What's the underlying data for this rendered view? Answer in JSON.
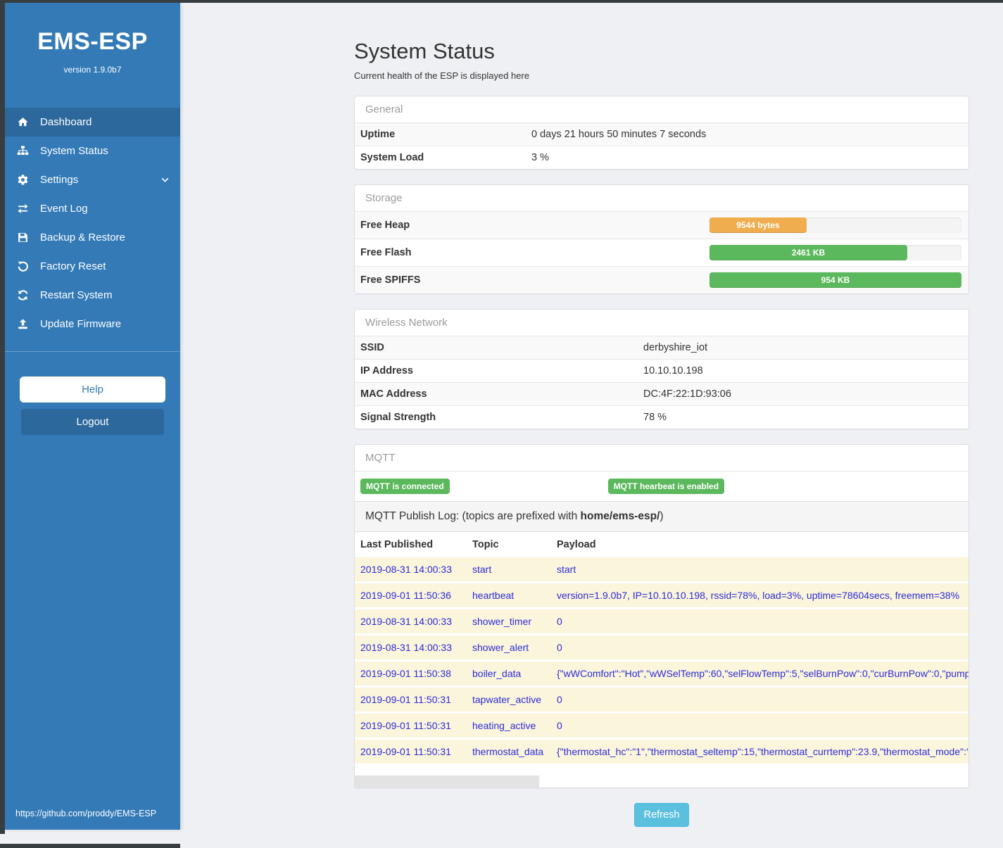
{
  "colors": {
    "accent": "#337ab7",
    "accent-active": "#2c689c",
    "success": "#5cb85c",
    "warning": "#f0ad4e",
    "info": "#5bc0de",
    "frame": "#383d41",
    "page-bg": "#eef0f4",
    "log-bg": "#fbf5dc",
    "log-text": "#2b2bd6"
  },
  "sidebar": {
    "brand": "EMS-ESP",
    "version": "version 1.9.0b7",
    "nav": [
      {
        "label": "Dashboard",
        "icon": "home-icon",
        "active": true
      },
      {
        "label": "System Status",
        "icon": "sitemap-icon",
        "active": false
      },
      {
        "label": "Settings",
        "icon": "gear-icon",
        "active": false
      },
      {
        "label": "Event Log",
        "icon": "exchange-icon",
        "active": false
      },
      {
        "label": "Backup & Restore",
        "icon": "save-icon",
        "active": false
      },
      {
        "label": "Factory Reset",
        "icon": "rotate-left-icon",
        "active": false
      },
      {
        "label": "Restart System",
        "icon": "refresh-icon",
        "active": false
      },
      {
        "label": "Update Firmware",
        "icon": "upload-icon",
        "active": false
      }
    ],
    "help_label": "Help",
    "logout_label": "Logout",
    "footer_link": "https://github.com/proddy/EMS-ESP"
  },
  "header": {
    "title": "System Status",
    "subtitle": "Current health of the ESP is displayed here"
  },
  "panels": {
    "general": {
      "title": "General",
      "rows": [
        {
          "label": "Uptime",
          "value": "0 days 21 hours 50 minutes 7 seconds"
        },
        {
          "label": "System Load",
          "value": "3 %"
        }
      ]
    },
    "storage": {
      "title": "Storage",
      "rows": [
        {
          "label": "Free Heap",
          "value": "9544 bytes",
          "percent": 38.5,
          "color": "#f0ad4e"
        },
        {
          "label": "Free Flash",
          "value": "2461 KB",
          "percent": 78.5,
          "color": "#5cb85c"
        },
        {
          "label": "Free SPIFFS",
          "value": "954 KB",
          "percent": 100,
          "color": "#5cb85c"
        }
      ]
    },
    "wireless": {
      "title": "Wireless Network",
      "rows": [
        {
          "label": "SSID",
          "value": "derbyshire_iot"
        },
        {
          "label": "IP Address",
          "value": "10.10.10.198"
        },
        {
          "label": "MAC Address",
          "value": "DC:4F:22:1D:93:06"
        },
        {
          "label": "Signal Strength",
          "value": "78 %"
        }
      ]
    },
    "mqtt": {
      "title": "MQTT",
      "badges": [
        "MQTT is connected",
        "MQTT hearbeat is enabled"
      ],
      "publish_log": {
        "prefix": "MQTT Publish Log: (topics are prefixed with ",
        "bold": "home/ems-esp/",
        "suffix": ")"
      },
      "table": {
        "headers": [
          "Last Published",
          "Topic",
          "Payload"
        ],
        "rows": [
          {
            "time": "2019-08-31 14:00:33",
            "topic": "start",
            "payload": "start"
          },
          {
            "time": "2019-09-01 11:50:36",
            "topic": "heartbeat",
            "payload": "version=1.9.0b7, IP=10.10.10.198, rssid=78%, load=3%, uptime=78604secs, freemem=38%"
          },
          {
            "time": "2019-08-31 14:00:33",
            "topic": "shower_timer",
            "payload": "0"
          },
          {
            "time": "2019-08-31 14:00:33",
            "topic": "shower_alert",
            "payload": "0"
          },
          {
            "time": "2019-09-01 11:50:38",
            "topic": "boiler_data",
            "payload": "{\"wWComfort\":\"Hot\",\"wWSelTemp\":60,\"selFlowTemp\":5,\"selBurnPow\":0,\"curBurnPow\":0,\"pump"
          },
          {
            "time": "2019-09-01 11:50:31",
            "topic": "tapwater_active",
            "payload": "0"
          },
          {
            "time": "2019-09-01 11:50:31",
            "topic": "heating_active",
            "payload": "0"
          },
          {
            "time": "2019-09-01 11:50:31",
            "topic": "thermostat_data",
            "payload": "{\"thermostat_hc\":\"1\",\"thermostat_seltemp\":15,\"thermostat_currtemp\":23.9,\"thermostat_mode\":\""
          }
        ]
      }
    }
  },
  "refresh_label": "Refresh"
}
